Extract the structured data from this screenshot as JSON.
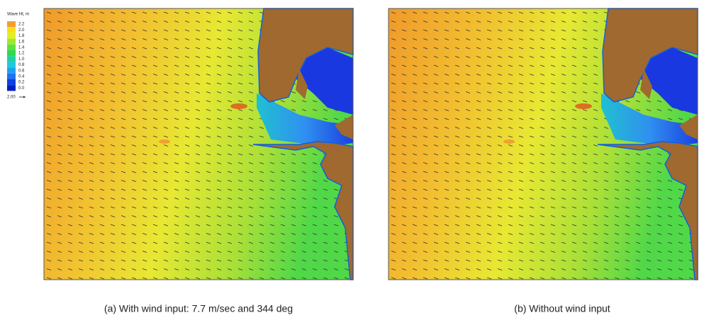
{
  "legend": {
    "title": "Wave Ht, m",
    "labels": [
      "2.2",
      "2.0",
      "1.8",
      "1.6",
      "1.4",
      "1.2",
      "1.0",
      "0.8",
      "0.6",
      "0.4",
      "0.2",
      "0.0"
    ],
    "colors": [
      "#f0a030",
      "#f5e020",
      "#e0f020",
      "#a0e830",
      "#60e040",
      "#30d850",
      "#20d0a0",
      "#20c8e0",
      "#20a0f0",
      "#2070f0",
      "#1040e0",
      "#0020c0"
    ],
    "vector_label": "2.00"
  },
  "panels": [
    {
      "caption": "(a) With wind input: 7.7 m/sec and 344 deg"
    },
    {
      "caption": "(b) Without wind input"
    }
  ]
}
